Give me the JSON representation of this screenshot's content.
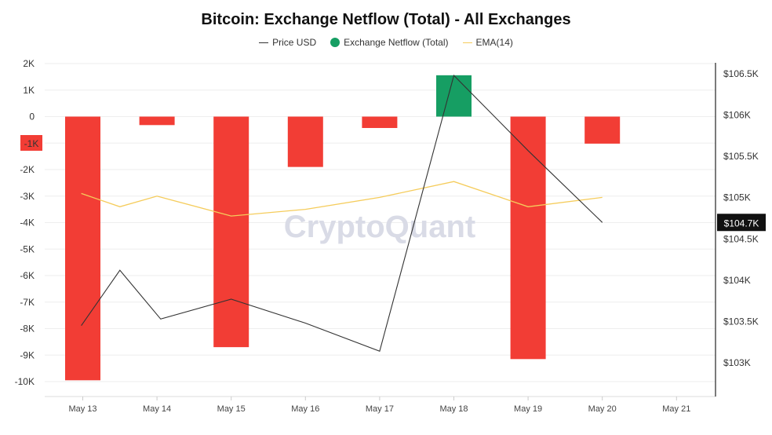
{
  "chart_data": {
    "type": "bar",
    "title": "Bitcoin: Exchange Netflow (Total) - All Exchanges",
    "watermark": "CryptoQuant",
    "categories": [
      "May 13",
      "May 14",
      "May 15",
      "May 16",
      "May 17",
      "May 18",
      "May 19",
      "May 20",
      "May 21"
    ],
    "series": [
      {
        "name": "Price USD",
        "type": "line",
        "axis": "right",
        "color": "#333333",
        "x": [
          12.98,
          13.5,
          14.05,
          15.0,
          16.0,
          17.0,
          18.0,
          19.0,
          20.0
        ],
        "values": [
          103450,
          104120,
          103530,
          103770,
          103480,
          103140,
          106480,
          105570,
          104700
        ]
      },
      {
        "name": "Exchange Netflow (Total)",
        "type": "bar",
        "axis": "left",
        "positive_color": "#169e63",
        "negative_color": "#f23d35",
        "values": [
          -9950,
          -320,
          -8700,
          -1900,
          -430,
          1560,
          -9150,
          -1020,
          null
        ]
      },
      {
        "name": "EMA(14)",
        "type": "line",
        "axis": "left",
        "color": "#f5cc5b",
        "x": [
          12.98,
          13.5,
          14.0,
          15.0,
          16.0,
          17.0,
          18.0,
          19.0,
          20.0
        ],
        "values": [
          -2900,
          -3400,
          -3000,
          -3750,
          -3500,
          -3050,
          -2450,
          -3400,
          -3050
        ]
      }
    ],
    "y_left": {
      "min": -10000,
      "max": 2000,
      "ticks": [
        "2K",
        "1K",
        "0",
        "-1K",
        "-2K",
        "-3K",
        "-4K",
        "-5K",
        "-6K",
        "-7K",
        "-8K",
        "-9K",
        "-10K"
      ]
    },
    "y_right": {
      "min": 102800,
      "max": 106500,
      "ticks": [
        "$106.5K",
        "$106K",
        "$105.5K",
        "$105K",
        "$104.5K",
        "$104K",
        "$103.5K",
        "$103K"
      ]
    },
    "current_price_label": "$104.7K",
    "grid": true,
    "legend_position": "top"
  }
}
